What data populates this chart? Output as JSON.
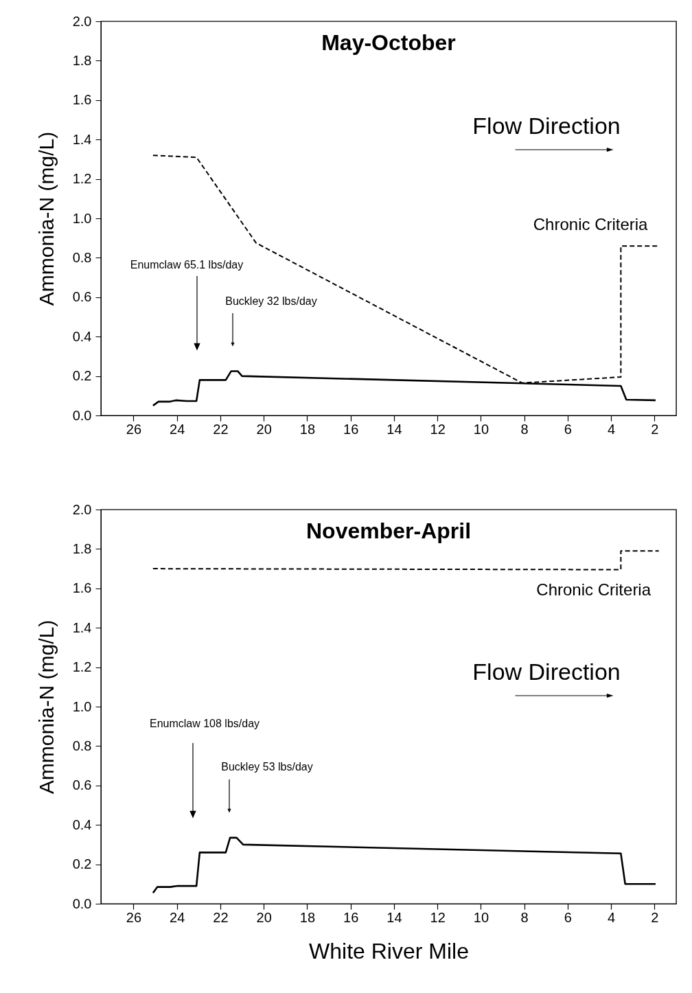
{
  "chart_data": [
    {
      "type": "line",
      "title": "May-October",
      "ylabel": "Ammonia-N (mg/L)",
      "xlim": [
        27.5,
        1
      ],
      "xticks": [
        26,
        24,
        22,
        20,
        18,
        16,
        14,
        12,
        10,
        8,
        6,
        4,
        2
      ],
      "ylim": [
        0,
        2
      ],
      "yticks": [
        {
          "value": 0,
          "label": "0.0"
        },
        {
          "value": 0.2,
          "label": "0.2"
        },
        {
          "value": 0.4,
          "label": "0.4"
        },
        {
          "value": 0.6,
          "label": "0.6"
        },
        {
          "value": 0.8,
          "label": "0.8"
        },
        {
          "value": 1,
          "label": "1.0"
        },
        {
          "value": 1.2,
          "label": "1.2"
        },
        {
          "value": 1.4,
          "label": "1.4"
        },
        {
          "value": 1.6,
          "label": "1.6"
        },
        {
          "value": 1.8,
          "label": "1.8"
        },
        {
          "value": 2,
          "label": "2.0"
        }
      ],
      "series": [
        {
          "color": "#000000",
          "line_style": "solid",
          "x": [
            25.1,
            24.85,
            24.35,
            24.05,
            23.55,
            23.1,
            22.95,
            22.6,
            21.75,
            21.5,
            21.2,
            21.0,
            3.55,
            3.3,
            1.95
          ],
          "values": [
            0.05,
            0.07,
            0.07,
            0.077,
            0.073,
            0.073,
            0.18,
            0.18,
            0.18,
            0.225,
            0.225,
            0.2,
            0.15,
            0.08,
            0.077
          ]
        },
        {
          "name": "Chronic Criteria",
          "color": "#000000",
          "line_style": "dashed",
          "x": [
            25.1,
            23.1,
            20.35,
            8.1,
            7.3,
            3.55,
            3.55,
            1.85
          ],
          "values": [
            1.32,
            1.31,
            0.875,
            0.165,
            0.17,
            0.195,
            0.86,
            0.86
          ]
        }
      ],
      "annotations": [
        "Enumclaw 65.1 lbs/day",
        "Buckley 32 lbs/day",
        "Flow Direction"
      ]
    },
    {
      "type": "line",
      "title": "November-April",
      "xlabel": "White River Mile",
      "ylabel": "Ammonia-N (mg/L)",
      "xlim": [
        27.5,
        1
      ],
      "xticks": [
        26,
        24,
        22,
        20,
        18,
        16,
        14,
        12,
        10,
        8,
        6,
        4,
        2
      ],
      "ylim": [
        0,
        2
      ],
      "yticks": [
        {
          "value": 0,
          "label": "0.0"
        },
        {
          "value": 0.2,
          "label": "0.2"
        },
        {
          "value": 0.4,
          "label": "0.4"
        },
        {
          "value": 0.6,
          "label": "0.6"
        },
        {
          "value": 0.8,
          "label": "0.8"
        },
        {
          "value": 1,
          "label": "1.0"
        },
        {
          "value": 1.2,
          "label": "1.2"
        },
        {
          "value": 1.4,
          "label": "1.4"
        },
        {
          "value": 1.6,
          "label": "1.6"
        },
        {
          "value": 1.8,
          "label": "1.8"
        },
        {
          "value": 2,
          "label": "2.0"
        }
      ],
      "series": [
        {
          "color": "#000000",
          "line_style": "solid",
          "x": [
            25.1,
            24.9,
            24.3,
            24.0,
            23.1,
            22.95,
            21.75,
            21.55,
            21.25,
            20.95,
            3.55,
            3.35,
            1.95
          ],
          "values": [
            0.055,
            0.085,
            0.085,
            0.09,
            0.09,
            0.26,
            0.26,
            0.335,
            0.335,
            0.3,
            0.255,
            0.1,
            0.1
          ]
        },
        {
          "name": "Chronic Criteria",
          "color": "#000000",
          "line_style": "dashed",
          "x": [
            25.1,
            3.55,
            3.55,
            1.8
          ],
          "values": [
            1.7,
            1.695,
            1.79,
            1.79
          ]
        }
      ],
      "annotations": [
        "Enumclaw 108 lbs/day",
        "Buckley 53 lbs/day",
        "Flow Direction"
      ]
    }
  ]
}
